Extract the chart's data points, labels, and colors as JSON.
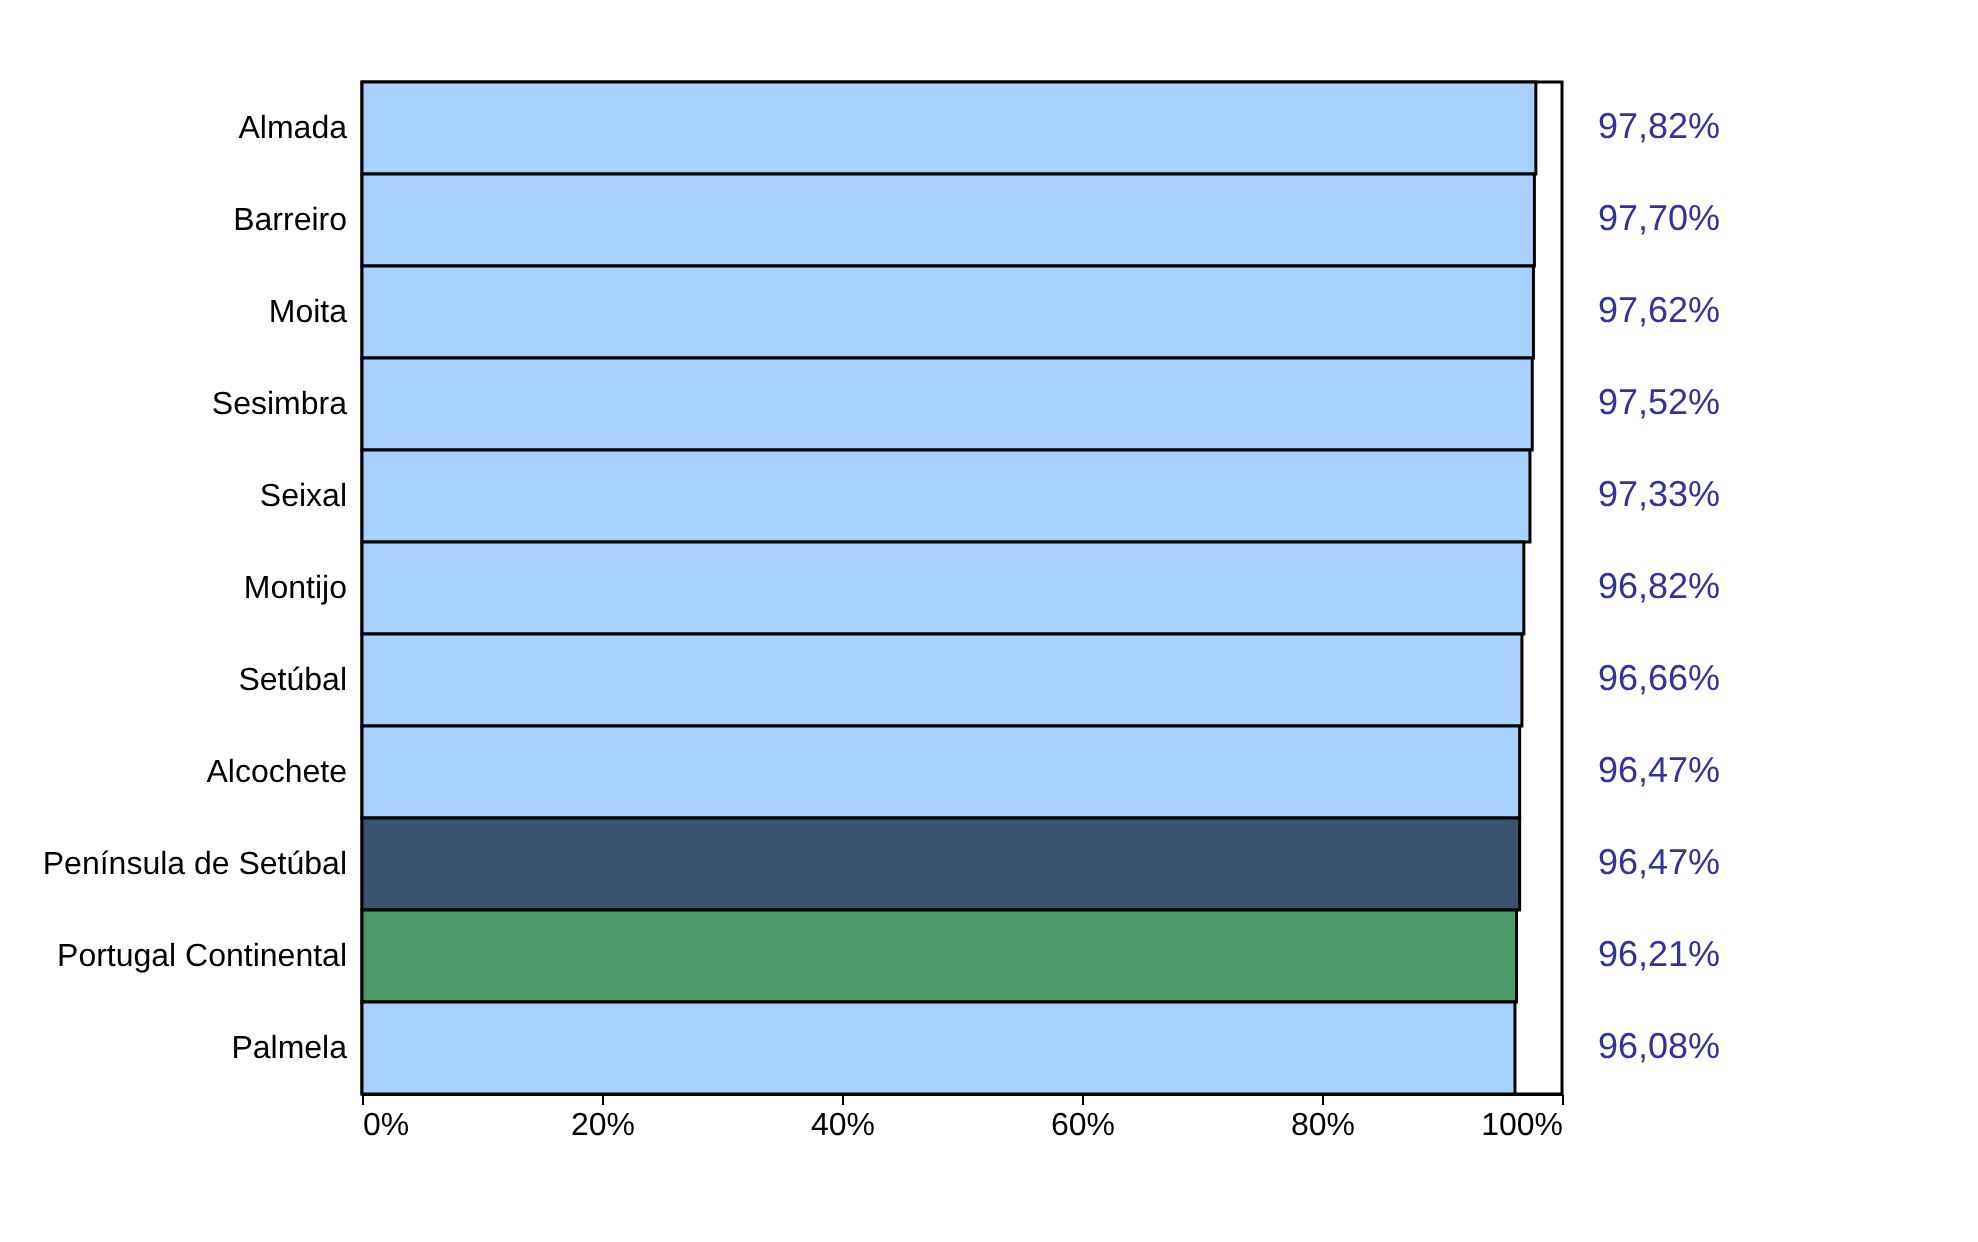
{
  "chart_data": {
    "type": "bar",
    "orientation": "horizontal",
    "categories": [
      "Almada",
      "Barreiro",
      "Moita",
      "Sesimbra",
      "Seixal",
      "Montijo",
      "Setúbal",
      "Alcochete",
      "Península de Setúbal",
      "Portugal Continental",
      "Palmela"
    ],
    "values": [
      97.82,
      97.7,
      97.62,
      97.52,
      97.33,
      96.82,
      96.66,
      96.47,
      96.47,
      96.21,
      96.08
    ],
    "colors": [
      "#a8d0ff",
      "#a8d0ff",
      "#a8d0ff",
      "#a8d0ff",
      "#a8d0ff",
      "#a8d0ff",
      "#a8d0ff",
      "#a8d0ff",
      "#3c5370",
      "#4a9a6a",
      "#a8d0ff"
    ],
    "value_labels": [
      "97,82%",
      "97,70%",
      "97,62%",
      "97,52%",
      "97,33%",
      "96,82%",
      "96,66%",
      "96,47%",
      "96,47%",
      "96,21%",
      "96,08%"
    ],
    "xlim": [
      0,
      100
    ],
    "xticks": [
      {
        "value": 0,
        "label": "0%"
      },
      {
        "value": 20,
        "label": "20%"
      },
      {
        "value": 40,
        "label": "40%"
      },
      {
        "value": 60,
        "label": "60%"
      },
      {
        "value": 80,
        "label": "80%"
      },
      {
        "value": 100,
        "label": "100%"
      }
    ]
  }
}
